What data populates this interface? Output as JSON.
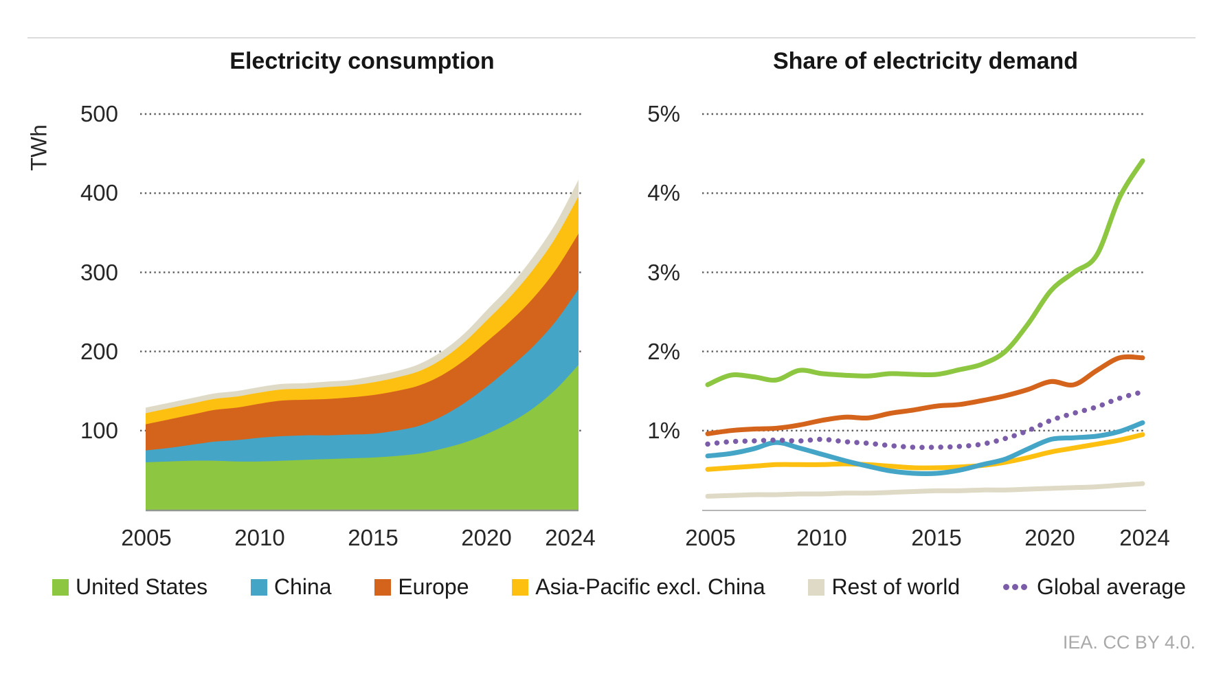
{
  "page": {
    "source_note": "IEA. CC BY 4.0."
  },
  "colors": {
    "united_states": "#8dc640",
    "china": "#45a5c6",
    "europe": "#d4641c",
    "asia_pacific": "#fdc010",
    "rest_of_world": "#dedac6",
    "global_average": "#7a5ca8",
    "gridline": "#5a5a5a",
    "left_axis_line": "#8f978f",
    "right_axis_line": "#b5b5b5",
    "title_text": "#161616",
    "tick_text": "#262626",
    "source_text": "#a9a9a9"
  },
  "left_chart": {
    "title": "Electricity consumption",
    "unit": "TWh",
    "y_ticks": [
      "500",
      "400",
      "300",
      "200",
      "100"
    ],
    "x_ticks": [
      "2005",
      "2010",
      "2015",
      "2020",
      "2024"
    ]
  },
  "right_chart": {
    "title": "Share of electricity demand",
    "y_ticks": [
      "5%",
      "4%",
      "3%",
      "2%",
      "1%"
    ],
    "x_ticks": [
      "2005",
      "2010",
      "2015",
      "2020",
      "2024"
    ]
  },
  "legend": {
    "items": [
      {
        "label": "United States",
        "marker": "square",
        "color": "#8dc640"
      },
      {
        "label": "China",
        "marker": "square",
        "color": "#45a5c6"
      },
      {
        "label": "Europe",
        "marker": "square",
        "color": "#d4641c"
      },
      {
        "label": "Asia-Pacific excl. China",
        "marker": "square",
        "color": "#fdc010"
      },
      {
        "label": "Rest of world",
        "marker": "square",
        "color": "#dedac6"
      },
      {
        "label": "Global average",
        "marker": "dots",
        "color": "#7a5ca8"
      }
    ]
  },
  "chart_data": [
    {
      "type": "area",
      "stacked": true,
      "title": "Electricity consumption",
      "ylabel": "TWh",
      "ylim": [
        0,
        500
      ],
      "y_gridlines": [
        100,
        200,
        300,
        400,
        500
      ],
      "grid": "dotted",
      "x": [
        2005,
        2006,
        2007,
        2008,
        2009,
        2010,
        2011,
        2012,
        2013,
        2014,
        2015,
        2016,
        2017,
        2018,
        2019,
        2020,
        2021,
        2022,
        2023,
        2024
      ],
      "series": [
        {
          "name": "United States",
          "color": "#8dc640",
          "values": [
            60,
            61,
            62,
            62,
            61,
            61,
            62,
            63,
            64,
            65,
            66,
            68,
            71,
            77,
            85,
            96,
            110,
            128,
            152,
            183
          ]
        },
        {
          "name": "China",
          "color": "#45a5c6",
          "values": [
            15,
            17,
            20,
            24,
            27,
            30,
            31,
            31,
            30,
            30,
            30,
            32,
            35,
            41,
            50,
            60,
            70,
            78,
            86,
            96
          ]
        },
        {
          "name": "Europe",
          "color": "#d4641c",
          "values": [
            33,
            36,
            38,
            40,
            41,
            43,
            45,
            45,
            46,
            47,
            49,
            50,
            51,
            52,
            54,
            57,
            58,
            61,
            65,
            70
          ]
        },
        {
          "name": "Asia-Pacific excl. China",
          "color": "#fdc010",
          "values": [
            14,
            14,
            14,
            14,
            14,
            14,
            14,
            14,
            15,
            15,
            16,
            17,
            18,
            20,
            23,
            27,
            31,
            36,
            41,
            47
          ]
        },
        {
          "name": "Rest of world",
          "color": "#dedac6",
          "values": [
            7,
            7,
            7,
            7,
            7,
            7,
            7,
            7,
            7,
            7,
            8,
            8,
            9,
            10,
            11,
            13,
            14,
            16,
            18,
            21
          ]
        }
      ]
    },
    {
      "type": "line",
      "title": "Share of electricity demand",
      "ylabel": "%",
      "ylim": [
        0,
        5
      ],
      "y_gridlines": [
        1,
        2,
        3,
        4,
        5
      ],
      "grid": "dotted",
      "x": [
        2005,
        2006,
        2007,
        2008,
        2009,
        2010,
        2011,
        2012,
        2013,
        2014,
        2015,
        2016,
        2017,
        2018,
        2019,
        2020,
        2021,
        2022,
        2023,
        2024
      ],
      "series": [
        {
          "name": "United States",
          "color": "#8dc640",
          "style": "solid",
          "values": [
            1.58,
            1.7,
            1.68,
            1.64,
            1.76,
            1.72,
            1.7,
            1.69,
            1.72,
            1.71,
            1.71,
            1.77,
            1.84,
            2.0,
            2.35,
            2.77,
            3.0,
            3.22,
            3.95,
            4.41
          ]
        },
        {
          "name": "China",
          "color": "#45a5c6",
          "style": "solid",
          "values": [
            0.68,
            0.71,
            0.77,
            0.85,
            0.78,
            0.7,
            0.62,
            0.55,
            0.49,
            0.46,
            0.46,
            0.5,
            0.57,
            0.64,
            0.77,
            0.89,
            0.91,
            0.93,
            0.99,
            1.1
          ]
        },
        {
          "name": "Europe",
          "color": "#d4641c",
          "style": "solid",
          "values": [
            0.96,
            1.0,
            1.02,
            1.03,
            1.07,
            1.13,
            1.17,
            1.16,
            1.22,
            1.26,
            1.31,
            1.33,
            1.38,
            1.44,
            1.52,
            1.62,
            1.58,
            1.76,
            1.92,
            1.92
          ]
        },
        {
          "name": "Asia-Pacific excl. China",
          "color": "#fdc010",
          "style": "solid",
          "values": [
            0.51,
            0.53,
            0.55,
            0.57,
            0.57,
            0.57,
            0.58,
            0.57,
            0.55,
            0.53,
            0.53,
            0.54,
            0.56,
            0.6,
            0.66,
            0.73,
            0.78,
            0.83,
            0.88,
            0.95
          ]
        },
        {
          "name": "Rest of world",
          "color": "#dedac6",
          "style": "solid",
          "values": [
            0.17,
            0.18,
            0.19,
            0.19,
            0.2,
            0.2,
            0.21,
            0.21,
            0.22,
            0.23,
            0.24,
            0.24,
            0.25,
            0.25,
            0.26,
            0.27,
            0.28,
            0.29,
            0.31,
            0.33
          ]
        },
        {
          "name": "Global average",
          "color": "#7a5ca8",
          "style": "dotted",
          "values": [
            0.83,
            0.86,
            0.87,
            0.88,
            0.87,
            0.89,
            0.86,
            0.84,
            0.81,
            0.79,
            0.79,
            0.8,
            0.83,
            0.9,
            1.0,
            1.13,
            1.22,
            1.3,
            1.41,
            1.49
          ]
        }
      ]
    }
  ]
}
